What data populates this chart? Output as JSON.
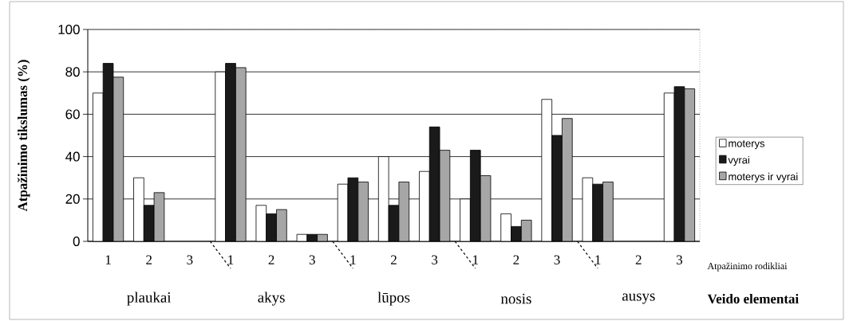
{
  "chart_data": {
    "type": "bar",
    "ylabel": "Atpažinimo tikslumas (%)",
    "xlabel": "Atpažinimo rodikliai",
    "categories": [
      "1",
      "2",
      "3",
      "1",
      "2",
      "3",
      "1",
      "2",
      "3",
      "1",
      "2",
      "3",
      "1",
      "2",
      "3"
    ],
    "series": [
      {
        "name": "moterys",
        "color": "#ffffff",
        "values": [
          70,
          30,
          0,
          80,
          17,
          3.3,
          27,
          40,
          33,
          20,
          13,
          67,
          30,
          0,
          70
        ]
      },
      {
        "name": "vyrai",
        "color": "#1a1a1a",
        "values": [
          84,
          17,
          0,
          84,
          13,
          3.3,
          30,
          17,
          54,
          43,
          7,
          50,
          27,
          0,
          73
        ]
      },
      {
        "name": "moterys ir vyrai",
        "color": "#a6a6a6",
        "values": [
          77.5,
          23,
          0,
          82,
          15,
          3.3,
          28,
          28,
          43,
          31,
          10,
          58,
          28,
          0,
          72
        ]
      }
    ],
    "ylim": [
      0,
      100
    ],
    "yticks": [
      0,
      20,
      40,
      60,
      80,
      100
    ],
    "grid": "y",
    "legend": "right",
    "annotations": [
      "plaukai",
      "akys",
      "lūpos",
      "nosis",
      "ausys",
      "Veido elementai"
    ]
  }
}
